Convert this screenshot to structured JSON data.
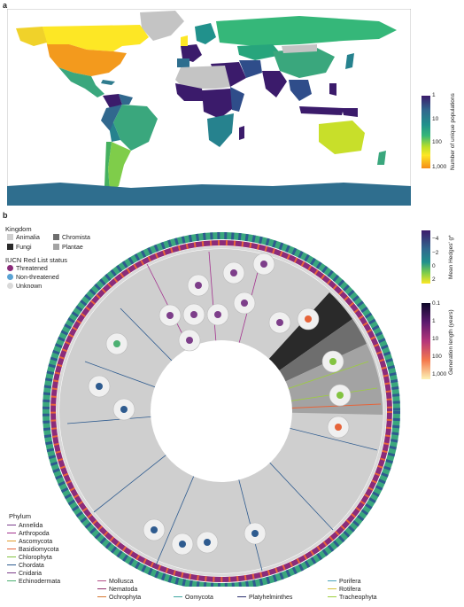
{
  "panel_a": {
    "label": "a",
    "colorbar": {
      "title": "Number of unique populations",
      "ticks": [
        "1",
        "10",
        "100",
        "1,000"
      ],
      "colors": [
        "#3b1b6b",
        "#31688e",
        "#21918c",
        "#35b779",
        "#90d743",
        "#fde725",
        "#fdae1a",
        "#f58c1a"
      ]
    }
  },
  "panel_b": {
    "label": "b",
    "kingdom": {
      "title": "Kingdom",
      "items": [
        {
          "label": "Animalia",
          "color": "#cfcfcf"
        },
        {
          "label": "Chromista",
          "color": "#6e6e6e"
        },
        {
          "label": "Fungi",
          "color": "#2a2a2a"
        },
        {
          "label": "Plantae",
          "color": "#a3a3a3"
        }
      ]
    },
    "iucn": {
      "title": "IUCN Red List status",
      "items": [
        {
          "label": "Threatened",
          "color": "#8b2c7a"
        },
        {
          "label": "Non-threatened",
          "color": "#5aa3d4"
        },
        {
          "label": "Unknown",
          "color": "#d9d9d9"
        }
      ]
    },
    "hedges_bar": {
      "title": "Mean Hedges' g*",
      "ticks": [
        "−4",
        "−2",
        "0",
        "2"
      ]
    },
    "generation_bar": {
      "title": "Generation length (years)",
      "ticks": [
        "0.1",
        "1",
        "10",
        "100",
        "1,000"
      ]
    },
    "phylum": {
      "title": "Phylum",
      "col1": [
        {
          "label": "Annelida",
          "color": "#7b3f8c"
        },
        {
          "label": "Arthropoda",
          "color": "#a3328f"
        },
        {
          "label": "Ascomycota",
          "color": "#e39c2c"
        },
        {
          "label": "Basidiomycota",
          "color": "#e6643a"
        },
        {
          "label": "Chlorophyta",
          "color": "#83c341"
        },
        {
          "label": "Chordata",
          "color": "#2e5b8f"
        },
        {
          "label": "Cnidaria",
          "color": "#7d3e8a"
        },
        {
          "label": "Echinodermata",
          "color": "#4cb072"
        }
      ],
      "col2": [
        {
          "label": "Mollusca",
          "color": "#b24c86"
        },
        {
          "label": "Nematoda",
          "color": "#8e2f6a"
        },
        {
          "label": "Ochrophyta",
          "color": "#d6772f"
        }
      ],
      "col3": [
        {
          "label": "Oomycota",
          "color": "#3da6a0"
        }
      ],
      "col4": [
        {
          "label": "Platyhelminthes",
          "color": "#2b2f6e"
        }
      ],
      "col5": [
        {
          "label": "Porifera",
          "color": "#4aa3b8"
        },
        {
          "label": "Rotifera",
          "color": "#d4c23a"
        },
        {
          "label": "Tracheophyta",
          "color": "#9dcf3c"
        }
      ]
    }
  }
}
